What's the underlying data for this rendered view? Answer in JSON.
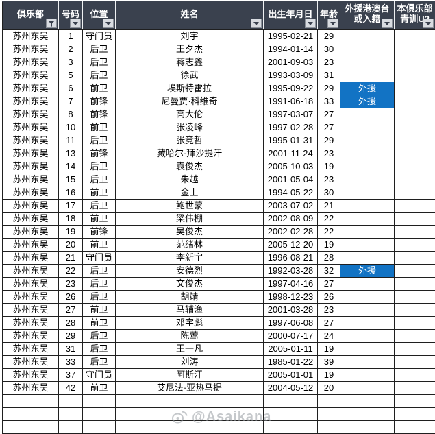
{
  "header": {
    "columns": [
      {
        "id": "club",
        "lines": [
          "俱乐部"
        ],
        "filter": "funnel"
      },
      {
        "id": "number",
        "lines": [
          "号码"
        ],
        "filter": "arrow"
      },
      {
        "id": "position",
        "lines": [
          "位置"
        ],
        "filter": "arrow"
      },
      {
        "id": "name",
        "lines": [
          "姓名"
        ],
        "filter": "arrow"
      },
      {
        "id": "dob",
        "lines": [
          "出生年月日"
        ],
        "filter": "arrow"
      },
      {
        "id": "age",
        "lines": [
          "年龄"
        ],
        "filter": "arrow"
      },
      {
        "id": "foreign",
        "lines": [
          "外援港澳台",
          "或入籍"
        ],
        "filter": "arrow"
      },
      {
        "id": "youth",
        "lines": [
          "本俱乐部",
          "青训U2"
        ],
        "filter": "arrow"
      }
    ]
  },
  "rows": [
    {
      "club": "苏州东吴",
      "number": "1",
      "position": "守门员",
      "name": "刘宇",
      "dob": "1995-02-21",
      "age": "29",
      "foreign": "",
      "youth": ""
    },
    {
      "club": "苏州东吴",
      "number": "2",
      "position": "后卫",
      "name": "王夕杰",
      "dob": "1994-01-14",
      "age": "30",
      "foreign": "",
      "youth": ""
    },
    {
      "club": "苏州东吴",
      "number": "3",
      "position": "后卫",
      "name": "蒋志鑫",
      "dob": "2001-09-03",
      "age": "23",
      "foreign": "",
      "youth": ""
    },
    {
      "club": "苏州东吴",
      "number": "5",
      "position": "后卫",
      "name": "徐武",
      "dob": "1993-03-09",
      "age": "31",
      "foreign": "",
      "youth": ""
    },
    {
      "club": "苏州东吴",
      "number": "6",
      "position": "前卫",
      "name": "埃斯特雷拉",
      "dob": "1995-09-22",
      "age": "29",
      "foreign": "外援",
      "youth": ""
    },
    {
      "club": "苏州东吴",
      "number": "7",
      "position": "前锋",
      "name": "尼曼贾·科维奇",
      "dob": "1991-06-18",
      "age": "33",
      "foreign": "外援",
      "youth": ""
    },
    {
      "club": "苏州东吴",
      "number": "8",
      "position": "前锋",
      "name": "高大伦",
      "dob": "1997-03-07",
      "age": "27",
      "foreign": "",
      "youth": ""
    },
    {
      "club": "苏州东吴",
      "number": "10",
      "position": "前卫",
      "name": "张凌峰",
      "dob": "1997-02-28",
      "age": "27",
      "foreign": "",
      "youth": ""
    },
    {
      "club": "苏州东吴",
      "number": "11",
      "position": "后卫",
      "name": "张竞哲",
      "dob": "1995-01-31",
      "age": "29",
      "foreign": "",
      "youth": ""
    },
    {
      "club": "苏州东吴",
      "number": "13",
      "position": "前锋",
      "name": "藏哈尔·拜沙提汗",
      "dob": "2001-11-24",
      "age": "23",
      "foreign": "",
      "youth": ""
    },
    {
      "club": "苏州东吴",
      "number": "14",
      "position": "后卫",
      "name": "袁俊杰",
      "dob": "2005-10-03",
      "age": "19",
      "foreign": "",
      "youth": ""
    },
    {
      "club": "苏州东吴",
      "number": "15",
      "position": "后卫",
      "name": "朱越",
      "dob": "2001-05-04",
      "age": "23",
      "foreign": "",
      "youth": ""
    },
    {
      "club": "苏州东吴",
      "number": "16",
      "position": "前卫",
      "name": "金上",
      "dob": "1994-05-22",
      "age": "30",
      "foreign": "",
      "youth": ""
    },
    {
      "club": "苏州东吴",
      "number": "17",
      "position": "后卫",
      "name": "鲍世蒙",
      "dob": "2003-07-02",
      "age": "21",
      "foreign": "",
      "youth": ""
    },
    {
      "club": "苏州东吴",
      "number": "18",
      "position": "前卫",
      "name": "梁伟棚",
      "dob": "2002-08-09",
      "age": "22",
      "foreign": "",
      "youth": ""
    },
    {
      "club": "苏州东吴",
      "number": "19",
      "position": "前锋",
      "name": "吴俊杰",
      "dob": "2002-02-28",
      "age": "22",
      "foreign": "",
      "youth": ""
    },
    {
      "club": "苏州东吴",
      "number": "20",
      "position": "前卫",
      "name": "范绪林",
      "dob": "2005-12-20",
      "age": "19",
      "foreign": "",
      "youth": ""
    },
    {
      "club": "苏州东吴",
      "number": "21",
      "position": "守门员",
      "name": "李新宇",
      "dob": "1996-08-21",
      "age": "28",
      "foreign": "",
      "youth": ""
    },
    {
      "club": "苏州东吴",
      "number": "22",
      "position": "后卫",
      "name": "安德烈",
      "dob": "1992-03-28",
      "age": "32",
      "foreign": "外援",
      "youth": ""
    },
    {
      "club": "苏州东吴",
      "number": "23",
      "position": "后卫",
      "name": "文俊杰",
      "dob": "1997-04-16",
      "age": "27",
      "foreign": "",
      "youth": ""
    },
    {
      "club": "苏州东吴",
      "number": "26",
      "position": "后卫",
      "name": "胡靖",
      "dob": "1998-12-23",
      "age": "26",
      "foreign": "",
      "youth": ""
    },
    {
      "club": "苏州东吴",
      "number": "27",
      "position": "前卫",
      "name": "马辅渔",
      "dob": "2001-03-28",
      "age": "23",
      "foreign": "",
      "youth": ""
    },
    {
      "club": "苏州东吴",
      "number": "28",
      "position": "前卫",
      "name": "邓宇彪",
      "dob": "1997-06-08",
      "age": "27",
      "foreign": "",
      "youth": ""
    },
    {
      "club": "苏州东吴",
      "number": "29",
      "position": "后卫",
      "name": "陈莺",
      "dob": "2000-07-17",
      "age": "24",
      "foreign": "",
      "youth": ""
    },
    {
      "club": "苏州东吴",
      "number": "31",
      "position": "后卫",
      "name": "王一凡",
      "dob": "2005-01-11",
      "age": "19",
      "foreign": "",
      "youth": ""
    },
    {
      "club": "苏州东吴",
      "number": "33",
      "position": "后卫",
      "name": "刘涛",
      "dob": "1985-01-22",
      "age": "39",
      "foreign": "",
      "youth": ""
    },
    {
      "club": "苏州东吴",
      "number": "37",
      "position": "守门员",
      "name": "阿斯汗",
      "dob": "2005-01-01",
      "age": "19",
      "foreign": "",
      "youth": ""
    },
    {
      "club": "苏州东吴",
      "number": "42",
      "position": "前卫",
      "name": "艾尼法·亚热马提",
      "dob": "2004-05-12",
      "age": "20",
      "foreign": "",
      "youth": ""
    }
  ],
  "empty_rows": 3,
  "foreign_label": "外援",
  "watermark": {
    "text": "@Asaikana"
  },
  "colors": {
    "header_bg": "#3A414E",
    "foreign_bg": "#1273C4",
    "grid": "#1f1f1f"
  }
}
